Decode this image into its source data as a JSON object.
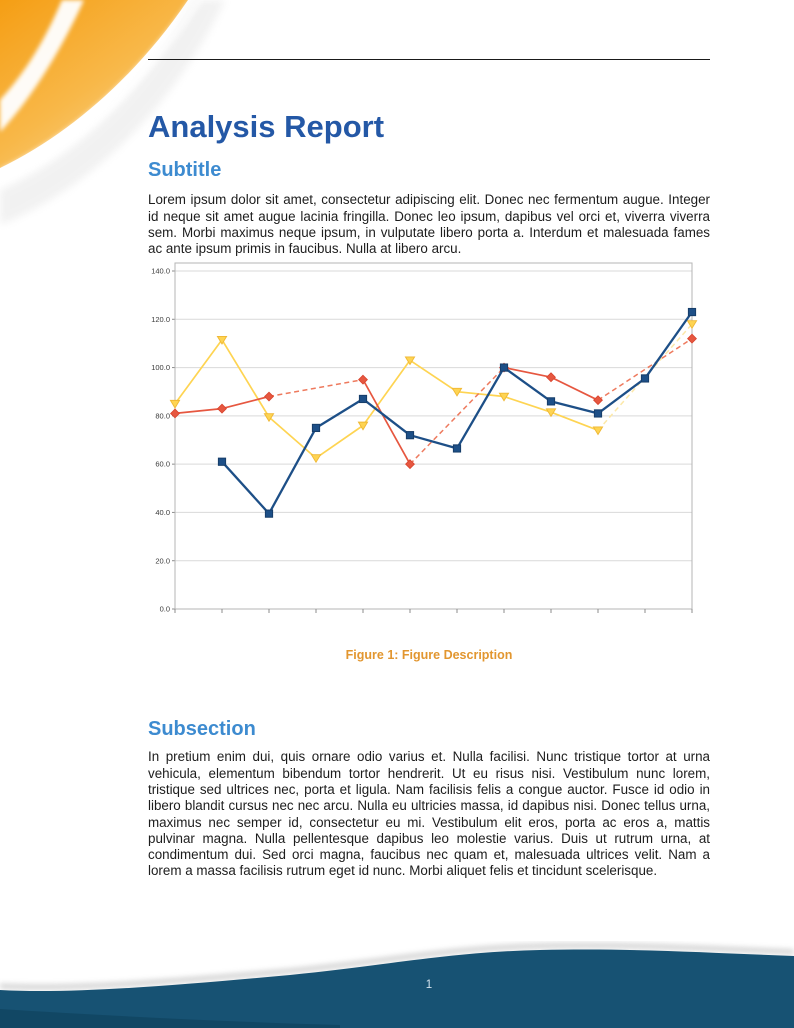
{
  "document": {
    "title": "Analysis Report",
    "sections": [
      {
        "heading": "Subtitle",
        "body": "Lorem ipsum dolor sit amet, consectetur adipiscing elit. Donec nec fermentum augue. Integer id neque sit amet augue lacinia fringilla. Donec leo ipsum, dapibus vel orci et, viverra viverra sem. Morbi maximus neque ipsum, in vulputate libero porta a. Interdum et malesuada fames ac ante ipsum primis in faucibus. Nulla at libero arcu."
      },
      {
        "heading": "Subsection",
        "body": "In pretium enim dui, quis ornare odio varius et. Nulla facilisi. Nunc tristique tortor at urna vehicula, elementum bibendum tortor hendrerit. Ut eu risus nisi. Vestibulum nunc lorem, tristique sed ultrices nec, porta et ligula. Nam facilisis felis a congue auctor. Fusce id odio in libero blandit cursus nec nec arcu. Nulla eu ultricies massa, id dapibus nisi. Donec tellus urna, maximus nec semper id, consectetur eu mi. Vestibulum elit eros, porta ac eros a, mattis pulvinar magna. Nulla pellentesque dapibus leo molestie varius. Duis ut rutrum urna, at condimentum dui. Sed orci magna, faucibus nec quam et, malesuada ultrices velit. Nam a lorem a massa facilisis rutrum eget id nunc. Morbi aliquet felis et tincidunt scelerisque."
      }
    ],
    "figure": {
      "caption": "Figure 1: Figure Description"
    }
  },
  "footer": {
    "page_number": "1"
  },
  "colors": {
    "title_blue": "#2458a6",
    "heading_blue": "#3d8bd0",
    "caption_orange": "#e2962f",
    "footer_navy": "#175273",
    "corner_orange": "#f6a11c",
    "grid_gray": "#d9d9d9",
    "frame_gray": "#b5b5b5"
  },
  "chart_data": {
    "type": "line",
    "title": "",
    "x": [
      1,
      2,
      3,
      4,
      5,
      6,
      7,
      8,
      9,
      10,
      11,
      12
    ],
    "x_tick_labels": [
      "",
      "",
      "",
      "",
      "",
      "",
      "",
      "",
      "",
      "",
      "",
      ""
    ],
    "ylim": [
      0,
      140
    ],
    "yticks": [
      0,
      20,
      40,
      60,
      80,
      100,
      120,
      140
    ],
    "ytick_labels": [
      "0.0",
      "20.0",
      "40.0",
      "60.0",
      "80.0",
      "100.0",
      "120.0",
      "140.0"
    ],
    "grid": true,
    "legend": false,
    "gap_style": "missing points bridged with dashed segments",
    "series": [
      {
        "name": "series-yellow",
        "color": "#fed452",
        "bridge_color": "#fce8a8",
        "marker": "triangle-down",
        "marker_stroke": "#efb733",
        "values": [
          85,
          111.5,
          79.5,
          62.5,
          76,
          103,
          90,
          88,
          81.5,
          74,
          null,
          118
        ]
      },
      {
        "name": "series-red",
        "color": "#e65740",
        "bridge_color": "#ee7a5e",
        "marker": "diamond",
        "marker_stroke": "#d8422c",
        "values": [
          81,
          83,
          88,
          null,
          95,
          60,
          null,
          100,
          96,
          86.5,
          null,
          112
        ]
      },
      {
        "name": "series-blue",
        "color": "#1d4f87",
        "bridge_color": "#5a83b0",
        "marker": "square",
        "marker_stroke": "#163d69",
        "values": [
          null,
          61,
          39.5,
          75,
          87,
          72,
          66.5,
          100,
          86,
          81,
          95.5,
          123
        ]
      }
    ]
  }
}
